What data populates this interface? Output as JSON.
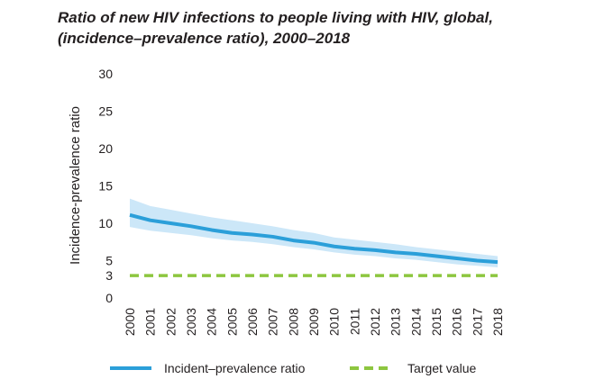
{
  "chart_data": {
    "type": "line",
    "title_line1": "Ratio of new HIV infections to people living with HIV, global,",
    "title_line2": "(incidence–prevalence ratio), 2000–2018",
    "xlabel": "",
    "ylabel": "Incidence-prevalence ratio",
    "ylim": [
      0,
      30
    ],
    "yticks": [
      0,
      3,
      5,
      10,
      15,
      20,
      25,
      30
    ],
    "x": [
      "2000",
      "2001",
      "2002",
      "2003",
      "2004",
      "2005",
      "2006",
      "2007",
      "2008",
      "2009",
      "2010",
      "2011",
      "2012",
      "2013",
      "2014",
      "2015",
      "2016",
      "2017",
      "2018"
    ],
    "series": [
      {
        "name": "Incident–prevalence ratio",
        "color": "#2b9fd9",
        "values": [
          11.1,
          10.4,
          10.0,
          9.6,
          9.1,
          8.7,
          8.5,
          8.2,
          7.7,
          7.4,
          6.9,
          6.6,
          6.4,
          6.1,
          5.9,
          5.6,
          5.3,
          5.0,
          4.8
        ],
        "lower": [
          9.5,
          9.0,
          8.7,
          8.4,
          8.0,
          7.7,
          7.5,
          7.2,
          6.8,
          6.5,
          6.1,
          5.8,
          5.6,
          5.3,
          5.1,
          4.8,
          4.5,
          4.3,
          4.1
        ],
        "upper": [
          13.3,
          12.3,
          11.8,
          11.3,
          10.8,
          10.4,
          10.0,
          9.6,
          9.1,
          8.7,
          8.1,
          7.8,
          7.5,
          7.2,
          6.8,
          6.5,
          6.2,
          5.9,
          5.6
        ],
        "band_color": "#cce7f8"
      },
      {
        "name": "Target value",
        "color": "#8dc63f",
        "values": [
          3,
          3,
          3,
          3,
          3,
          3,
          3,
          3,
          3,
          3,
          3,
          3,
          3,
          3,
          3,
          3,
          3,
          3,
          3
        ]
      }
    ],
    "grid": false,
    "legend_position": "bottom"
  }
}
